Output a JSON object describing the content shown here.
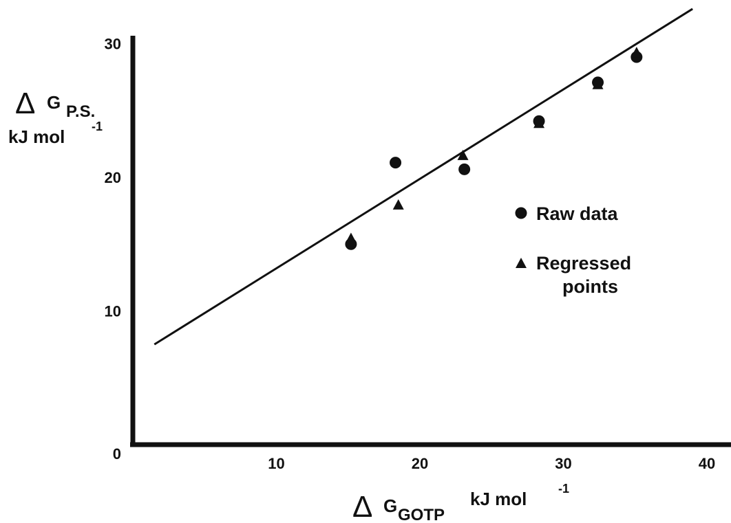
{
  "chart_data": {
    "type": "scatter",
    "xlabel": {
      "delta": "Δ",
      "main": "G",
      "sub": "GOTP",
      "unit": "kJ mol",
      "sup": "-1"
    },
    "ylabel": {
      "delta": "Δ",
      "main": "G",
      "sub": "P.S.",
      "unit": "kJ mol",
      "sup": "-1"
    },
    "xlim": [
      0,
      40
    ],
    "ylim": [
      0,
      30
    ],
    "x_ticks": [
      "10",
      "20",
      "30",
      "40"
    ],
    "y_ticks": [
      "10",
      "20",
      "30"
    ],
    "origin_label": "0",
    "grid": false,
    "legend_position": "right",
    "series": [
      {
        "name": "Raw data",
        "marker": "circle",
        "x": [
          15.2,
          18.3,
          23.1,
          28.3,
          32.4,
          35.1
        ],
        "y": [
          15.0,
          21.1,
          20.6,
          24.2,
          27.1,
          29.0
        ]
      },
      {
        "name": "Regressed points",
        "marker": "triangle",
        "x": [
          15.2,
          18.5,
          23.0,
          28.3,
          32.4,
          35.1
        ],
        "y": [
          15.4,
          17.9,
          21.6,
          24.0,
          26.9,
          29.3
        ]
      }
    ],
    "fit_line": {
      "x": [
        1.5,
        39.0
      ],
      "y": [
        7.5,
        32.6
      ]
    },
    "legend": [
      {
        "marker": "circle",
        "lines": [
          "Raw data"
        ]
      },
      {
        "marker": "triangle",
        "lines": [
          "Regressed",
          "points"
        ]
      }
    ]
  }
}
